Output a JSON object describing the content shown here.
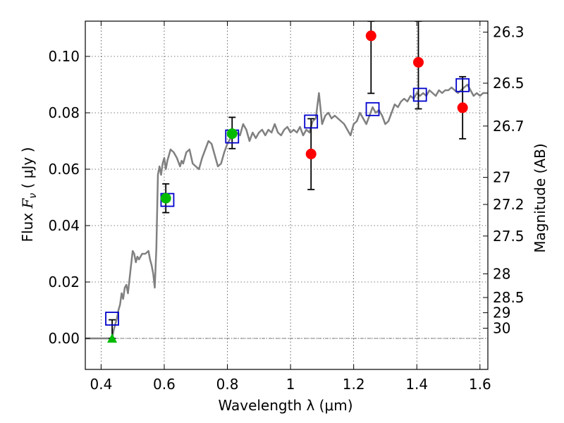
{
  "chart_data": {
    "type": "scatter",
    "title": "",
    "xlabel": "Wavelength  λ (μm)",
    "ylabel_text": "Flux ",
    "ylabel_symbol": "F",
    "ylabel_subscript": "ν",
    "ylabel_units": " ( μJy )",
    "ylabel_right": "Magnitude (AB)",
    "xlim": [
      0.35,
      1.625
    ],
    "ylim": [
      -0.011,
      0.1125
    ],
    "grid": true,
    "x_ticks": [
      {
        "value": 0.4,
        "label": "0.4"
      },
      {
        "value": 0.6,
        "label": "0.6"
      },
      {
        "value": 0.8,
        "label": "0.8"
      },
      {
        "value": 1.0,
        "label": "1"
      },
      {
        "value": 1.2,
        "label": "1.2"
      },
      {
        "value": 1.4,
        "label": "1.4"
      },
      {
        "value": 1.6,
        "label": "1.6"
      }
    ],
    "y_ticks": [
      {
        "value": 0.0,
        "label": "0.00"
      },
      {
        "value": 0.02,
        "label": "0.02"
      },
      {
        "value": 0.04,
        "label": "0.04"
      },
      {
        "value": 0.06,
        "label": "0.06"
      },
      {
        "value": 0.08,
        "label": "0.08"
      },
      {
        "value": 0.1,
        "label": "0.10"
      }
    ],
    "right_ticks": [
      {
        "label": "26.3",
        "flux": 0.1086
      },
      {
        "label": "26.5",
        "flux": 0.0905
      },
      {
        "label": "26.7",
        "flux": 0.0753
      },
      {
        "label": "27",
        "flux": 0.0571
      },
      {
        "label": "27.2",
        "flux": 0.0475
      },
      {
        "label": "27.5",
        "flux": 0.0363
      },
      {
        "label": "28",
        "flux": 0.0229
      },
      {
        "label": "28.5",
        "flux": 0.0145
      },
      {
        "label": "29",
        "flux": 0.0091
      },
      {
        "label": "30",
        "flux": 0.0036
      }
    ],
    "colors": {
      "model": "#808080",
      "observed_red": "#ff0000",
      "observed_green": "#00bb00",
      "model_box": "#0000cc",
      "errorbar": "#000000",
      "zero_line": "#555555"
    },
    "series": [
      {
        "name": "model_spectrum",
        "kind": "line",
        "x": [
          0.35,
          0.415,
          0.43,
          0.435,
          0.44,
          0.445,
          0.45,
          0.455,
          0.46,
          0.465,
          0.47,
          0.475,
          0.48,
          0.485,
          0.49,
          0.495,
          0.5,
          0.505,
          0.51,
          0.515,
          0.52,
          0.53,
          0.54,
          0.55,
          0.555,
          0.56,
          0.565,
          0.57,
          0.575,
          0.58,
          0.585,
          0.59,
          0.595,
          0.6,
          0.605,
          0.61,
          0.615,
          0.62,
          0.63,
          0.64,
          0.65,
          0.655,
          0.66,
          0.67,
          0.68,
          0.69,
          0.7,
          0.71,
          0.72,
          0.73,
          0.74,
          0.75,
          0.76,
          0.77,
          0.78,
          0.79,
          0.8,
          0.81,
          0.82,
          0.83,
          0.84,
          0.85,
          0.86,
          0.87,
          0.88,
          0.89,
          0.9,
          0.91,
          0.92,
          0.93,
          0.94,
          0.95,
          0.96,
          0.97,
          0.98,
          0.99,
          1.0,
          1.01,
          1.02,
          1.03,
          1.04,
          1.05,
          1.06,
          1.07,
          1.08,
          1.09,
          1.1,
          1.11,
          1.12,
          1.13,
          1.14,
          1.15,
          1.16,
          1.17,
          1.18,
          1.19,
          1.2,
          1.21,
          1.22,
          1.23,
          1.24,
          1.25,
          1.26,
          1.27,
          1.28,
          1.29,
          1.3,
          1.31,
          1.32,
          1.33,
          1.34,
          1.35,
          1.36,
          1.37,
          1.38,
          1.39,
          1.4,
          1.41,
          1.42,
          1.43,
          1.44,
          1.45,
          1.46,
          1.47,
          1.48,
          1.49,
          1.5,
          1.51,
          1.52,
          1.53,
          1.54,
          1.55,
          1.56,
          1.57,
          1.58,
          1.59,
          1.6,
          1.61,
          1.625
        ],
        "y": [
          0.0,
          0.0,
          0.0,
          0.0,
          0.003,
          0.005,
          0.007,
          0.01,
          0.012,
          0.016,
          0.014,
          0.018,
          0.019,
          0.016,
          0.021,
          0.026,
          0.031,
          0.03,
          0.027,
          0.029,
          0.028,
          0.03,
          0.03,
          0.031,
          0.028,
          0.026,
          0.023,
          0.018,
          0.032,
          0.058,
          0.061,
          0.058,
          0.062,
          0.064,
          0.06,
          0.063,
          0.065,
          0.067,
          0.066,
          0.064,
          0.061,
          0.063,
          0.062,
          0.066,
          0.067,
          0.062,
          0.061,
          0.06,
          0.064,
          0.067,
          0.07,
          0.069,
          0.065,
          0.061,
          0.062,
          0.066,
          0.069,
          0.071,
          0.072,
          0.073,
          0.072,
          0.076,
          0.074,
          0.07,
          0.073,
          0.071,
          0.073,
          0.074,
          0.072,
          0.074,
          0.073,
          0.076,
          0.073,
          0.072,
          0.074,
          0.075,
          0.073,
          0.074,
          0.073,
          0.075,
          0.072,
          0.074,
          0.073,
          0.077,
          0.078,
          0.087,
          0.076,
          0.079,
          0.08,
          0.078,
          0.079,
          0.078,
          0.077,
          0.076,
          0.074,
          0.072,
          0.076,
          0.077,
          0.08,
          0.078,
          0.076,
          0.079,
          0.082,
          0.08,
          0.081,
          0.079,
          0.076,
          0.077,
          0.08,
          0.083,
          0.082,
          0.084,
          0.085,
          0.084,
          0.086,
          0.085,
          0.087,
          0.086,
          0.087,
          0.086,
          0.088,
          0.087,
          0.086,
          0.088,
          0.087,
          0.088,
          0.088,
          0.089,
          0.088,
          0.087,
          0.088,
          0.089,
          0.09,
          0.088,
          0.086,
          0.087,
          0.086,
          0.087,
          0.087
        ]
      },
      {
        "name": "observed_red",
        "kind": "points",
        "x": [
          1.065,
          1.255,
          1.405,
          1.545
        ],
        "y": [
          0.0654,
          0.1073,
          0.0979,
          0.0818
        ],
        "err_low": [
          0.0528,
          0.0869,
          0.0814,
          0.0708
        ],
        "err_high": [
          0.0779,
          0.1125,
          0.1125,
          0.0928
        ]
      },
      {
        "name": "observed_green",
        "kind": "points",
        "x": [
          0.605,
          0.815
        ],
        "y": [
          0.0497,
          0.0726
        ],
        "err_low": [
          0.0446,
          0.0673
        ],
        "err_high": [
          0.0548,
          0.0784
        ]
      },
      {
        "name": "observed_upper_limit",
        "kind": "triangle",
        "x": [
          0.435
        ],
        "y": [
          0.0
        ],
        "err_low": [
          0.0
        ],
        "err_high": [
          0.0066
        ]
      },
      {
        "name": "model_boxes",
        "kind": "squares",
        "x": [
          0.435,
          0.61,
          0.815,
          1.065,
          1.26,
          1.41,
          1.545
        ],
        "y": [
          0.007,
          0.0491,
          0.0716,
          0.0769,
          0.0813,
          0.0864,
          0.0898
        ]
      }
    ]
  }
}
